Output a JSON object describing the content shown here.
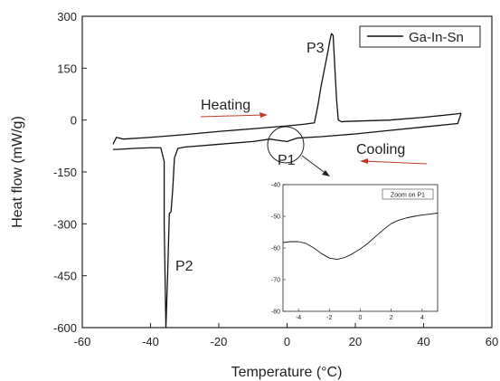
{
  "chart_data": [
    {
      "type": "line",
      "xlabel": "Temperature (°C)",
      "ylabel": "Heat flow (mW/g)",
      "xlim": [
        -60,
        60
      ],
      "ylim": [
        -600,
        300
      ],
      "x_ticks": [
        "-60",
        "-40",
        "-20",
        "0",
        "20",
        "40",
        "60"
      ],
      "y_ticks": [
        "300",
        "150",
        "0",
        "-150",
        "-300",
        "-450",
        "-600"
      ],
      "legend": {
        "position": "top-right",
        "entries": [
          "Ga-In-Sn"
        ]
      },
      "series": [
        {
          "name": "Ga-In-Sn",
          "segment": "heating",
          "x": [
            -51,
            -50,
            -48,
            -40,
            -30,
            -20,
            -10,
            0,
            5,
            8,
            9,
            10,
            11,
            12,
            12.5,
            13,
            13.5,
            14,
            14.5,
            15,
            16,
            17,
            30,
            40,
            50,
            51
          ],
          "y": [
            -70,
            -50,
            -55,
            -50,
            -42,
            -33,
            -25,
            -17,
            -12,
            -8,
            40,
            100,
            150,
            200,
            228,
            250,
            245,
            150,
            60,
            0,
            -5,
            -4,
            0,
            8,
            18,
            20
          ]
        },
        {
          "name": "Ga-In-Sn",
          "segment": "cooling",
          "x": [
            51,
            50,
            40,
            30,
            20,
            10,
            3,
            0,
            -3,
            -5,
            -10,
            -20,
            -30,
            -32,
            -33,
            -33.5,
            -34,
            -34.5,
            -35,
            -35.5,
            -35.5,
            -36,
            -36,
            -37,
            -40,
            -45,
            -50,
            -51
          ],
          "y": [
            20,
            -10,
            -20,
            -30,
            -40,
            -48,
            -52,
            -62,
            -58,
            -55,
            -62,
            -70,
            -78,
            -82,
            -110,
            -200,
            -265,
            -270,
            -450,
            -600,
            -600,
            -300,
            -120,
            -80,
            -80,
            -82,
            -85,
            -85
          ]
        }
      ],
      "annotations": [
        {
          "text": "P1",
          "x": 0,
          "y": -62
        },
        {
          "text": "P2",
          "x": -35,
          "y": -430
        },
        {
          "text": "P3",
          "x": 10,
          "y": 200
        },
        {
          "text": "Heating",
          "direction": "right"
        },
        {
          "text": "Cooling",
          "direction": "left"
        }
      ]
    },
    {
      "type": "line",
      "title": "Zoom on P1",
      "xlim": [
        -5,
        5
      ],
      "ylim": [
        -80,
        -40
      ],
      "x_ticks": [
        "-4",
        "-2",
        "0",
        "2",
        "4"
      ],
      "y_ticks": [
        "-40",
        "-50",
        "-60",
        "-70",
        "-80"
      ],
      "series": [
        {
          "x": [
            -5,
            -4.5,
            -4,
            -3.5,
            -3,
            -2.5,
            -2,
            -1.5,
            -1,
            -0.5,
            0,
            0.5,
            1,
            1.5,
            2,
            2.5,
            3,
            3.5,
            4,
            4.5,
            5
          ],
          "y": [
            -58.3,
            -58,
            -58,
            -58.6,
            -60,
            -61.8,
            -63.2,
            -63.6,
            -63,
            -61.8,
            -60.3,
            -58.5,
            -56.3,
            -54.2,
            -52.3,
            -51.2,
            -50.5,
            -50,
            -49.6,
            -49.3,
            -49
          ]
        }
      ]
    }
  ]
}
